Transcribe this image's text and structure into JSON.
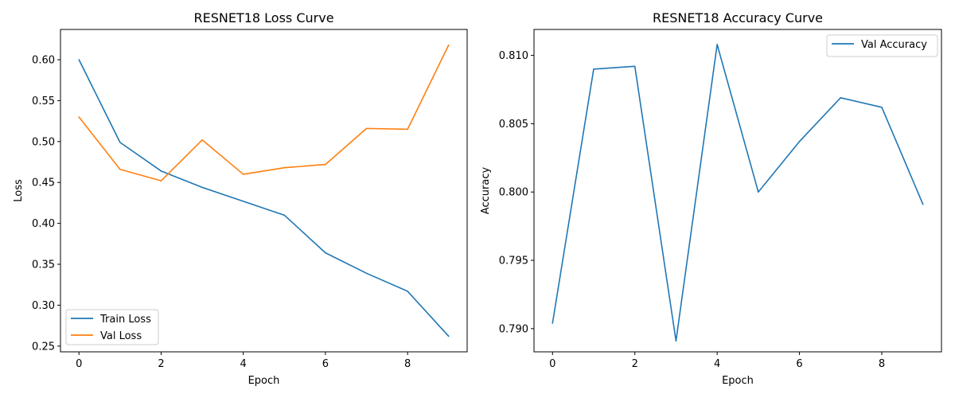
{
  "chart_data": [
    {
      "type": "line",
      "title": "RESNET18 Loss Curve",
      "xlabel": "Epoch",
      "ylabel": "Loss",
      "x": [
        0,
        1,
        2,
        3,
        4,
        5,
        6,
        7,
        8,
        9
      ],
      "xlim": [
        -0.45,
        9.45
      ],
      "ylim": [
        0.243,
        0.637
      ],
      "xticks": [
        0,
        2,
        4,
        6,
        8
      ],
      "yticks": [
        0.25,
        0.3,
        0.35,
        0.4,
        0.45,
        0.5,
        0.55,
        0.6
      ],
      "xtick_labels": [
        "0",
        "2",
        "4",
        "6",
        "8"
      ],
      "ytick_labels": [
        "0.25",
        "0.30",
        "0.35",
        "0.40",
        "0.45",
        "0.50",
        "0.55",
        "0.60"
      ],
      "legend_position": "bottom-left",
      "grid": false,
      "series": [
        {
          "name": "Train Loss",
          "color": "#1f77b4",
          "values": [
            0.6,
            0.499,
            0.464,
            0.444,
            0.427,
            0.41,
            0.364,
            0.339,
            0.317,
            0.262
          ]
        },
        {
          "name": "Val Loss",
          "color": "#ff7f0e",
          "values": [
            0.53,
            0.466,
            0.452,
            0.502,
            0.46,
            0.468,
            0.472,
            0.516,
            0.515,
            0.618
          ]
        }
      ]
    },
    {
      "type": "line",
      "title": "RESNET18 Accuracy Curve",
      "xlabel": "Epoch",
      "ylabel": "Accuracy",
      "x": [
        0,
        1,
        2,
        3,
        4,
        5,
        6,
        7,
        8,
        9
      ],
      "xlim": [
        -0.45,
        9.45
      ],
      "ylim": [
        0.7883,
        0.8119
      ],
      "xticks": [
        0,
        2,
        4,
        6,
        8
      ],
      "yticks": [
        0.79,
        0.795,
        0.8,
        0.805,
        0.81
      ],
      "xtick_labels": [
        "0",
        "2",
        "4",
        "6",
        "8"
      ],
      "ytick_labels": [
        "0.790",
        "0.795",
        "0.800",
        "0.805",
        "0.810"
      ],
      "legend_position": "top-right",
      "grid": false,
      "series": [
        {
          "name": "Val Accuracy",
          "color": "#1f77b4",
          "values": [
            0.7904,
            0.809,
            0.8092,
            0.7891,
            0.8108,
            0.8,
            0.8037,
            0.8069,
            0.8062,
            0.7991
          ]
        }
      ]
    }
  ]
}
